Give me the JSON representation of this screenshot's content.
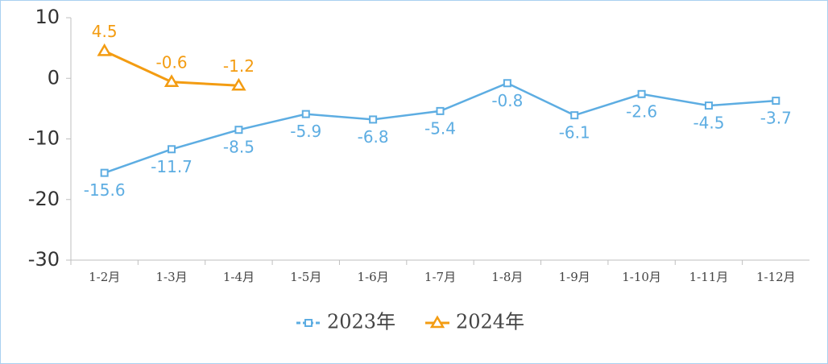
{
  "chart_data": {
    "type": "line",
    "categories": [
      "1-2月",
      "1-3月",
      "1-4月",
      "1-5月",
      "1-6月",
      "1-7月",
      "1-8月",
      "1-9月",
      "1-10月",
      "1-11月",
      "1-12月"
    ],
    "series": [
      {
        "name": "2023年",
        "color": "#5dade2",
        "marker": "square",
        "values": [
          -15.6,
          -11.7,
          -8.5,
          -5.9,
          -6.8,
          -5.4,
          -0.8,
          -6.1,
          -2.6,
          -4.5,
          -3.7
        ]
      },
      {
        "name": "2024年",
        "color": "#f39c12",
        "marker": "triangle",
        "values": [
          4.5,
          -0.6,
          -1.2,
          null,
          null,
          null,
          null,
          null,
          null,
          null,
          null
        ]
      }
    ],
    "ylim": [
      -30,
      10
    ],
    "yticks": [
      10,
      0,
      -10,
      -20,
      -30
    ],
    "grid": false,
    "legend": "bottom"
  }
}
